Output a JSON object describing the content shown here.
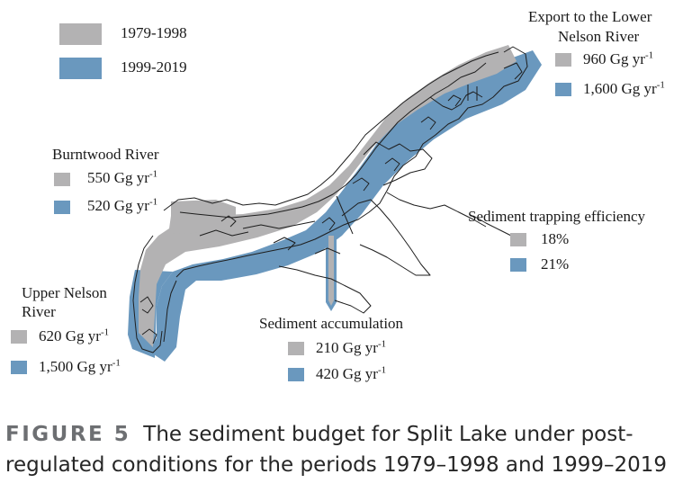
{
  "legend": {
    "items": [
      {
        "label": "1979-1998",
        "color": "#b3b2b3"
      },
      {
        "label": "1999-2019",
        "color": "#6a98be"
      }
    ]
  },
  "flows": {
    "export": {
      "title_line1": "Export to the Lower",
      "title_line2": "Nelson River",
      "period1": {
        "value": "960 Gg yr",
        "exp": "-1"
      },
      "period2": {
        "value": "1,600 Gg yr",
        "exp": "-1"
      }
    },
    "burntwood": {
      "title": "Burntwood River",
      "period1": {
        "value": "550 Gg yr",
        "exp": "-1"
      },
      "period2": {
        "value": "520 Gg yr",
        "exp": "-1"
      }
    },
    "trapping": {
      "title": "Sediment trapping efficiency",
      "period1": {
        "value": "18%"
      },
      "period2": {
        "value": "21%"
      }
    },
    "upper_nelson": {
      "title_line1": "Upper Nelson",
      "title_line2": "River",
      "period1": {
        "value": "620 Gg yr",
        "exp": "-1"
      },
      "period2": {
        "value": "1,500 Gg yr",
        "exp": "-1"
      }
    },
    "accumulation": {
      "title": "Sediment accumulation",
      "period1": {
        "value": "210 Gg yr",
        "exp": "-1"
      },
      "period2": {
        "value": "420 Gg yr",
        "exp": "-1"
      }
    }
  },
  "caption": {
    "label": "FIGURE 5",
    "text": "The sediment budget for Split Lake under post-regulated conditions for the periods 1979–1998 and 1999–2019"
  }
}
